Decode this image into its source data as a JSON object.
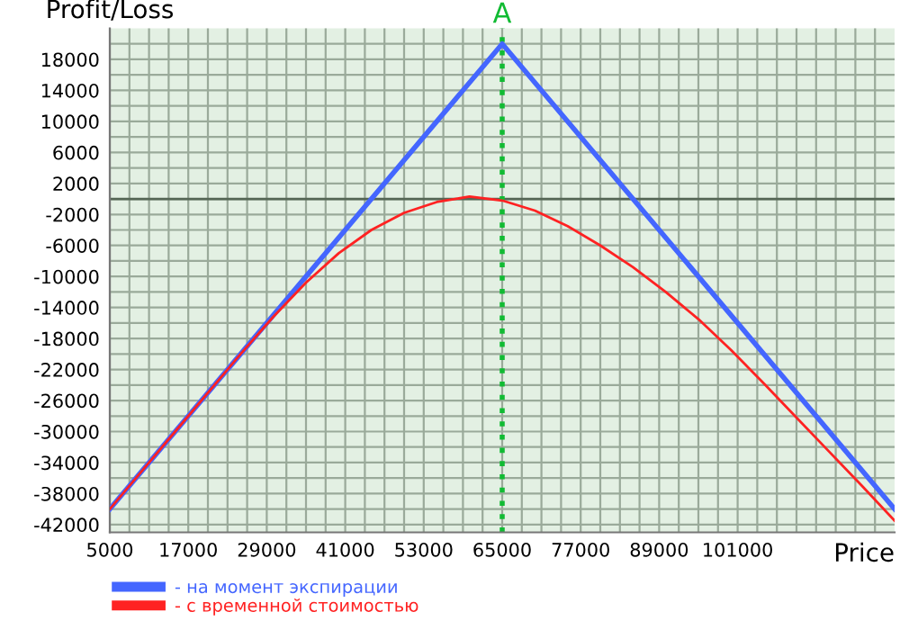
{
  "chart_data": {
    "type": "line",
    "xlabel": "Price",
    "ylabel": "Profit/Loss",
    "series": [
      {
        "name": "- на момент экспирации",
        "color": "#4466ff",
        "x": [
          5000,
          65000,
          125000
        ],
        "values": [
          -40000,
          20000,
          -40000
        ]
      },
      {
        "name": "- с временной стоимостью",
        "color": "#ff2222",
        "x": [
          5000,
          15000,
          25000,
          30000,
          35000,
          40000,
          45000,
          50000,
          55000,
          60000,
          65000,
          70000,
          75000,
          80000,
          85000,
          90000,
          95000,
          100000,
          105000,
          110000,
          115000,
          120000,
          125000
        ],
        "values": [
          -40000,
          -30000,
          -20000,
          -15200,
          -10800,
          -7000,
          -4000,
          -1800,
          -400,
          300,
          -200,
          -1500,
          -3500,
          -6000,
          -8800,
          -12000,
          -15500,
          -19500,
          -23800,
          -28200,
          -32600,
          -37000,
          -41500
        ]
      }
    ],
    "xlim": [
      5000,
      125000
    ],
    "ylim": [
      -43000,
      22000
    ],
    "xticks": [
      5000,
      {
        "value": 8000,
        "label": null
      },
      {
        "value": 11000,
        "label": null
      },
      {
        "value": 14000,
        "label": null
      },
      17000,
      {
        "value": 20000,
        "label": null
      },
      {
        "value": 23000,
        "label": null
      },
      {
        "value": 26000,
        "label": null
      },
      29000,
      {
        "value": 32000,
        "label": null
      },
      {
        "value": 35000,
        "label": null
      },
      {
        "value": 38000,
        "label": null
      },
      41000,
      {
        "value": 44000,
        "label": null
      },
      {
        "value": 47000,
        "label": null
      },
      {
        "value": 50000,
        "label": null
      },
      53000,
      {
        "value": 56000,
        "label": null
      },
      {
        "value": 59000,
        "label": null
      },
      {
        "value": 62000,
        "label": null
      },
      65000,
      {
        "value": 68000,
        "label": null
      },
      {
        "value": 71000,
        "label": null
      },
      {
        "value": 74000,
        "label": null
      },
      77000,
      {
        "value": 80000,
        "label": null
      },
      {
        "value": 83000,
        "label": null
      },
      {
        "value": 86000,
        "label": null
      },
      89000,
      {
        "value": 92000,
        "label": null
      },
      {
        "value": 95000,
        "label": null
      },
      {
        "value": 98000,
        "label": null
      },
      101000,
      {
        "value": 104000,
        "label": null
      },
      {
        "value": 107000,
        "label": null
      },
      {
        "value": 110000,
        "label": null
      },
      {
        "value": 113000,
        "label": null
      },
      {
        "value": 116000,
        "label": null
      },
      {
        "value": 119000,
        "label": null
      },
      {
        "value": 122000,
        "label": null
      }
    ],
    "yticks": [
      -42000,
      {
        "value": -40000,
        "label": null
      },
      -38000,
      {
        "value": -36000,
        "label": null
      },
      -34000,
      {
        "value": -32000,
        "label": null
      },
      -30000,
      {
        "value": -28000,
        "label": null
      },
      -26000,
      {
        "value": -24000,
        "label": null
      },
      -22000,
      {
        "value": -20000,
        "label": null
      },
      -18000,
      {
        "value": -16000,
        "label": null
      },
      -14000,
      {
        "value": -12000,
        "label": null
      },
      -10000,
      {
        "value": -8000,
        "label": null
      },
      -6000,
      {
        "value": -4000,
        "label": null
      },
      -2000,
      {
        "value": 0,
        "label": null
      },
      2000,
      {
        "value": 4000,
        "label": null
      },
      6000,
      {
        "value": 8000,
        "label": null
      },
      10000,
      {
        "value": 12000,
        "label": null
      },
      14000,
      {
        "value": 16000,
        "label": null
      },
      18000,
      {
        "value": 20000,
        "label": null
      }
    ],
    "ref_lines": [
      {
        "axis": "y",
        "value": 0,
        "label": null,
        "color": "#556655",
        "line_style": "solid"
      },
      {
        "axis": "x",
        "value": 65000,
        "label": "A",
        "color": "#11bb33",
        "line_style": "dotted"
      }
    ],
    "grid": true,
    "legend": "bottom",
    "marker": "none",
    "line_style": "solid"
  }
}
